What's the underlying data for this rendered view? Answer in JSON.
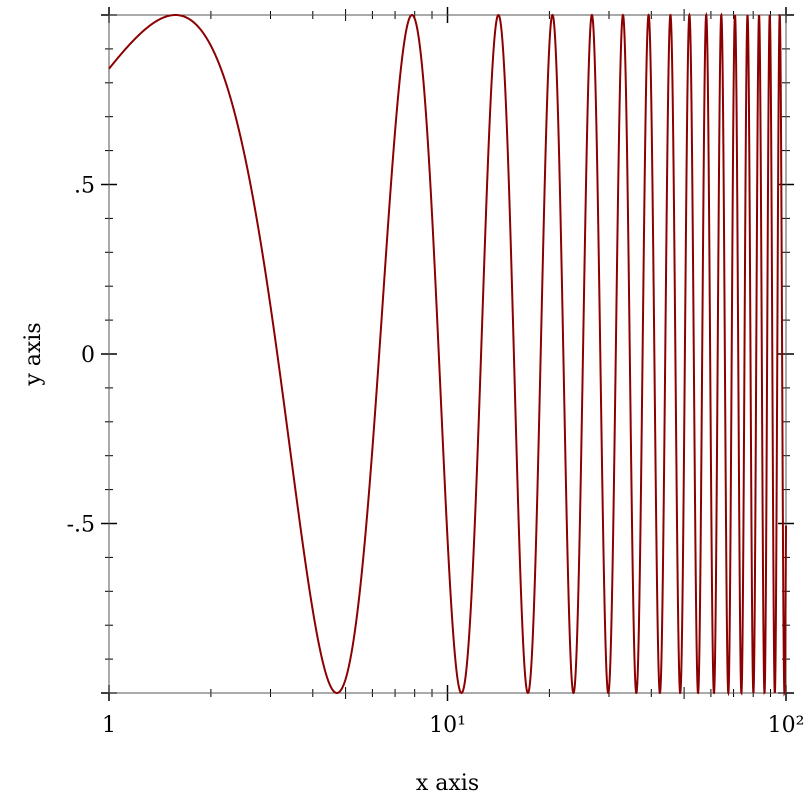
{
  "chart_data": {
    "type": "line",
    "xlabel": "x axis",
    "ylabel": "y axis",
    "xscale": "log",
    "xlim": [
      1,
      100
    ],
    "ylim": [
      -1,
      1
    ],
    "x_ticks": [
      {
        "value": 1,
        "label": "1"
      },
      {
        "value": 10,
        "label": "10¹"
      },
      {
        "value": 100,
        "label": "10²"
      }
    ],
    "y_ticks": [
      {
        "value": 0.5,
        "label": ".5"
      },
      {
        "value": 0,
        "label": "0"
      },
      {
        "value": -0.5,
        "label": "-.5"
      }
    ],
    "grid": false,
    "series": [
      {
        "function": "sin(x)",
        "color": "#8b0000"
      }
    ]
  }
}
